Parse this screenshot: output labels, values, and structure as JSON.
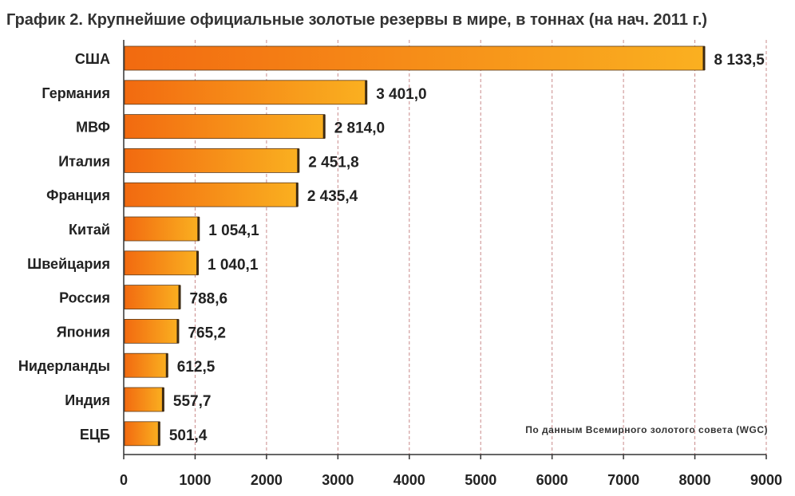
{
  "chart_data": {
    "type": "bar",
    "orientation": "horizontal",
    "title": "График 2. Крупнейшие официальные золотые резервы в мире, в тоннах (на нач. 2011 г.)",
    "categories": [
      "США",
      "Германия",
      "МВФ",
      "Италия",
      "Франция",
      "Китай",
      "Швейцария",
      "Россия",
      "Япония",
      "Нидерланды",
      "Индия",
      "ЕЦБ"
    ],
    "values": [
      8133.5,
      3401.0,
      2814.0,
      2451.8,
      2435.4,
      1054.1,
      1040.1,
      788.6,
      765.2,
      612.5,
      557.7,
      501.4
    ],
    "value_labels": [
      "8 133,5",
      "3 401,0",
      "2 814,0",
      "2 451,8",
      "2 435,4",
      "1 054,1",
      "1 040,1",
      "788,6",
      "765,2",
      "612,5",
      "557,7",
      "501,4"
    ],
    "xlim": [
      0,
      9000
    ],
    "xticks": [
      0,
      1000,
      2000,
      3000,
      4000,
      5000,
      6000,
      7000,
      8000,
      9000
    ],
    "xtick_labels": [
      "0",
      "1000",
      "2000",
      "3000",
      "4000",
      "5000",
      "6000",
      "7000",
      "8000",
      "9000"
    ],
    "xlabel": "",
    "ylabel": "",
    "grid": "vertical dashed",
    "source_note": "По данным Всемирного золотого совета (WGC)",
    "colors": {
      "bar_start": "#f26a10",
      "bar_end": "#fab020",
      "grid": "#c98a8a",
      "axis": "#333333"
    }
  }
}
